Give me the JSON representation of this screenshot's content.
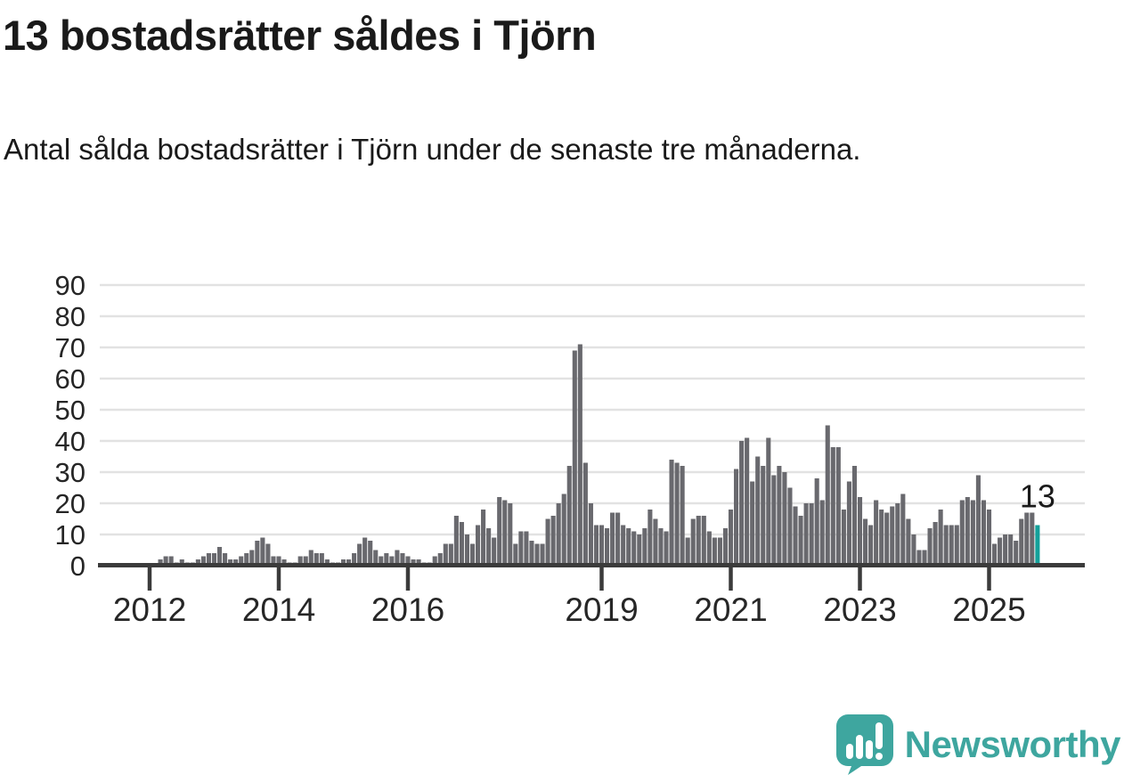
{
  "title": "13 bostadsrätter såldes i Tjörn",
  "subtitle": "Antal sålda bostadsrätter i Tjörn under de senaste tre månaderna.",
  "annotation": {
    "label": "13"
  },
  "watermark": {
    "brand": "Newsworthy"
  },
  "colors": {
    "bar": "#69696e",
    "highlight": "#14a09a",
    "grid": "#e2e2e2",
    "axis": "#3b3b3b",
    "tick_text": "#262626",
    "text": "#1a1a1a",
    "logo": "#3ea69f"
  },
  "chart_data": {
    "type": "bar",
    "title": "13 bostadsrätter såldes i Tjörn",
    "subtitle": "Antal sålda bostadsrätter i Tjörn under de senaste tre månaderna.",
    "x_start_month": "2012-01",
    "x_end_month": "2025-10",
    "values": [
      0,
      0,
      2,
      3,
      3,
      1,
      2,
      1,
      1,
      2,
      3,
      4,
      4,
      6,
      4,
      2,
      2,
      3,
      4,
      5,
      8,
      9,
      7,
      3,
      3,
      2,
      1,
      1,
      3,
      3,
      5,
      4,
      4,
      2,
      1,
      1,
      2,
      2,
      4,
      7,
      9,
      8,
      5,
      3,
      4,
      3,
      5,
      4,
      3,
      2,
      2,
      1,
      1,
      3,
      4,
      7,
      7,
      16,
      14,
      10,
      7,
      13,
      18,
      12,
      9,
      22,
      21,
      20,
      7,
      11,
      11,
      8,
      7,
      7,
      15,
      16,
      20,
      23,
      32,
      69,
      71,
      33,
      20,
      13,
      13,
      12,
      17,
      17,
      13,
      12,
      11,
      10,
      12,
      18,
      15,
      12,
      11,
      34,
      33,
      32,
      9,
      15,
      16,
      16,
      11,
      9,
      9,
      12,
      18,
      31,
      40,
      41,
      27,
      35,
      32,
      41,
      29,
      32,
      30,
      25,
      19,
      16,
      20,
      20,
      28,
      21,
      45,
      38,
      38,
      18,
      27,
      32,
      22,
      15,
      13,
      21,
      18,
      17,
      19,
      20,
      23,
      15,
      10,
      5,
      5,
      12,
      14,
      18,
      13,
      13,
      13,
      21,
      22,
      21,
      29,
      21,
      18,
      7,
      9,
      10,
      10,
      8,
      15,
      17,
      17,
      13
    ],
    "highlight_index": 165,
    "highlight_value": 13,
    "highlight_label": "13",
    "ylim": [
      0,
      90
    ],
    "yticks": [
      0,
      10,
      20,
      30,
      40,
      50,
      60,
      70,
      80,
      90
    ],
    "xticks": [
      {
        "label": "2012",
        "month_index": 0
      },
      {
        "label": "2014",
        "month_index": 24
      },
      {
        "label": "2016",
        "month_index": 48
      },
      {
        "label": "2019",
        "month_index": 84
      },
      {
        "label": "2021",
        "month_index": 108
      },
      {
        "label": "2023",
        "month_index": 132
      },
      {
        "label": "2025",
        "month_index": 156
      }
    ],
    "grid": true,
    "legend_position": "none"
  }
}
